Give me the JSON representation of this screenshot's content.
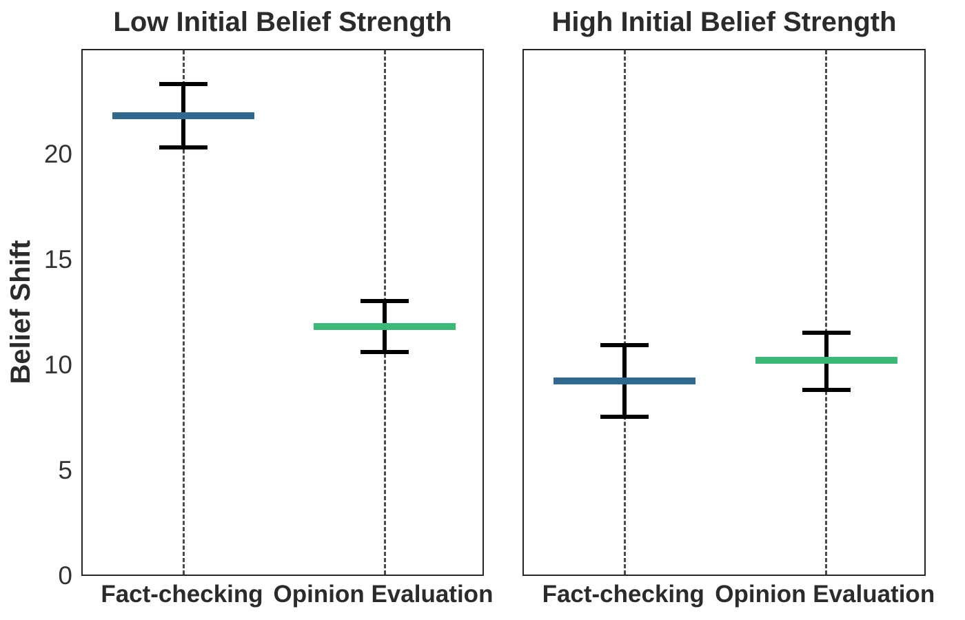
{
  "figure": {
    "background": "#ffffff",
    "text_color": "#2b2b2b",
    "spine_color": "#262626",
    "dashed_line_color": "#4a4a4a",
    "error_bar_color": "#000000",
    "ylabel": "Belief Shift"
  },
  "chart_data": [
    {
      "type": "point-estimate-with-ci",
      "title": "Low Initial Belief Strength",
      "categories": [
        "Fact-checking",
        "Opinion Evaluation"
      ],
      "ylabel": "Belief Shift",
      "ylim": [
        0,
        25
      ],
      "yticks": [
        0,
        5,
        10,
        15,
        20
      ],
      "grid": "vertical dashed line at each category",
      "legend": "none",
      "points": [
        {
          "category": "Fact-checking",
          "mean": 21.9,
          "ci_low": 20.4,
          "ci_high": 23.4,
          "color": "#31688E"
        },
        {
          "category": "Opinion Evaluation",
          "mean": 11.9,
          "ci_low": 10.7,
          "ci_high": 13.1,
          "color": "#3CB878"
        }
      ]
    },
    {
      "type": "point-estimate-with-ci",
      "title": "High Initial Belief Strength",
      "categories": [
        "Fact-checking",
        "Opinion Evaluation"
      ],
      "ylabel": "Belief Shift",
      "ylim": [
        0,
        25
      ],
      "yticks": [
        0,
        5,
        10,
        15,
        20
      ],
      "grid": "vertical dashed line at each category",
      "legend": "none",
      "points": [
        {
          "category": "Fact-checking",
          "mean": 9.3,
          "ci_low": 7.6,
          "ci_high": 11.0,
          "color": "#31688E"
        },
        {
          "category": "Opinion Evaluation",
          "mean": 10.3,
          "ci_low": 8.9,
          "ci_high": 11.6,
          "color": "#3CB878"
        }
      ]
    }
  ]
}
